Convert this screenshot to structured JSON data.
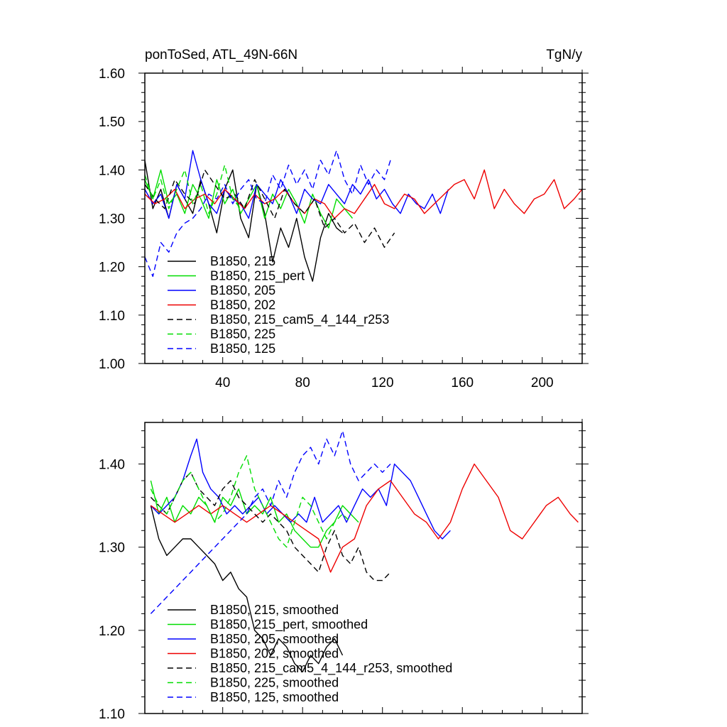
{
  "chart_data": [
    {
      "type": "line",
      "title": "ponToSed, ATL_49N-66N",
      "units": "TgN/y",
      "xlim": [
        1,
        220
      ],
      "ylim": [
        1.0,
        1.6
      ],
      "x_ticks": [
        40,
        80,
        120,
        160,
        200
      ],
      "x_tick_labels": [
        "40",
        "80",
        "120",
        "160",
        "200"
      ],
      "y_ticks": [
        1.0,
        1.1,
        1.2,
        1.3,
        1.4,
        1.5,
        1.6
      ],
      "y_tick_labels": [
        "1.00",
        "1.10",
        "1.20",
        "1.30",
        "1.40",
        "1.50",
        "1.60"
      ],
      "legend_position": "bottom-left",
      "series": [
        {
          "name": "B1850, 215",
          "color": "#000000",
          "dash": "solid",
          "x": [
            1,
            5,
            9,
            13,
            17,
            21,
            25,
            29,
            33,
            37,
            41,
            45,
            49,
            53,
            57,
            61,
            65,
            69,
            73,
            77,
            81,
            85,
            89,
            93,
            97,
            100
          ],
          "values": [
            1.42,
            1.32,
            1.36,
            1.3,
            1.37,
            1.34,
            1.31,
            1.38,
            1.33,
            1.27,
            1.36,
            1.4,
            1.3,
            1.26,
            1.37,
            1.31,
            1.21,
            1.28,
            1.24,
            1.3,
            1.22,
            1.17,
            1.26,
            1.31,
            1.28,
            1.27
          ]
        },
        {
          "name": "B1850, 215_pert",
          "color": "#00dd00",
          "dash": "solid",
          "x": [
            1,
            5,
            9,
            13,
            17,
            21,
            25,
            29,
            33,
            37,
            41,
            45,
            49,
            53,
            57,
            61,
            65,
            69,
            73,
            77,
            81,
            85,
            89,
            93,
            97,
            101,
            105
          ],
          "values": [
            1.38,
            1.34,
            1.4,
            1.33,
            1.35,
            1.31,
            1.37,
            1.34,
            1.3,
            1.38,
            1.33,
            1.36,
            1.31,
            1.34,
            1.37,
            1.3,
            1.35,
            1.32,
            1.36,
            1.33,
            1.29,
            1.35,
            1.31,
            1.28,
            1.34,
            1.32,
            1.3
          ]
        },
        {
          "name": "B1850, 205",
          "color": "#0000ff",
          "dash": "solid",
          "x": [
            1,
            5,
            9,
            13,
            17,
            21,
            25,
            29,
            33,
            37,
            41,
            45,
            49,
            53,
            57,
            61,
            65,
            69,
            73,
            77,
            81,
            85,
            89,
            93,
            97,
            101,
            105,
            109,
            113,
            117,
            121,
            125,
            129,
            133,
            137,
            141,
            145,
            149,
            153
          ],
          "values": [
            1.36,
            1.33,
            1.35,
            1.3,
            1.37,
            1.34,
            1.44,
            1.38,
            1.33,
            1.31,
            1.36,
            1.34,
            1.33,
            1.3,
            1.37,
            1.35,
            1.33,
            1.38,
            1.35,
            1.31,
            1.36,
            1.34,
            1.33,
            1.37,
            1.35,
            1.33,
            1.37,
            1.35,
            1.38,
            1.34,
            1.36,
            1.33,
            1.31,
            1.35,
            1.33,
            1.32,
            1.35,
            1.31,
            1.36
          ]
        },
        {
          "name": "B1850, 202",
          "color": "#ee0000",
          "dash": "solid",
          "x": [
            1,
            6,
            11,
            16,
            21,
            26,
            31,
            36,
            41,
            46,
            51,
            56,
            61,
            66,
            71,
            76,
            81,
            86,
            91,
            96,
            101,
            106,
            111,
            116,
            121,
            126,
            131,
            136,
            141,
            146,
            151,
            156,
            161,
            166,
            171,
            176,
            181,
            186,
            191,
            196,
            201,
            206,
            211,
            216,
            220
          ],
          "values": [
            1.35,
            1.33,
            1.34,
            1.36,
            1.32,
            1.34,
            1.35,
            1.33,
            1.36,
            1.34,
            1.32,
            1.35,
            1.33,
            1.34,
            1.36,
            1.33,
            1.31,
            1.34,
            1.33,
            1.3,
            1.32,
            1.31,
            1.34,
            1.37,
            1.33,
            1.32,
            1.35,
            1.34,
            1.31,
            1.33,
            1.35,
            1.37,
            1.38,
            1.34,
            1.4,
            1.32,
            1.36,
            1.33,
            1.31,
            1.34,
            1.35,
            1.38,
            1.32,
            1.34,
            1.36
          ]
        },
        {
          "name": "B1850, 215_cam5_4_144_r253",
          "color": "#000000",
          "dash": "dashed",
          "x": [
            1,
            6,
            11,
            16,
            21,
            26,
            31,
            36,
            41,
            46,
            51,
            56,
            61,
            66,
            71,
            76,
            81,
            86,
            91,
            96,
            101,
            106,
            111,
            116,
            121,
            126
          ],
          "values": [
            1.37,
            1.34,
            1.32,
            1.38,
            1.35,
            1.33,
            1.4,
            1.37,
            1.34,
            1.35,
            1.32,
            1.38,
            1.34,
            1.3,
            1.36,
            1.33,
            1.31,
            1.34,
            1.28,
            1.3,
            1.27,
            1.29,
            1.25,
            1.28,
            1.24,
            1.27
          ]
        },
        {
          "name": "B1850, 225",
          "color": "#00dd00",
          "dash": "dashed",
          "x": [
            1,
            5,
            9,
            13,
            17,
            21,
            25,
            29,
            33,
            37,
            41,
            45,
            49
          ],
          "values": [
            1.39,
            1.34,
            1.38,
            1.32,
            1.36,
            1.4,
            1.33,
            1.37,
            1.31,
            1.35,
            1.41,
            1.34,
            1.32
          ]
        },
        {
          "name": "B1850, 125",
          "color": "#0000ff",
          "dash": "dashed",
          "x": [
            1,
            5,
            9,
            13,
            17,
            21,
            25,
            29,
            33,
            37,
            41,
            45,
            49,
            53,
            57,
            61,
            65,
            69,
            73,
            77,
            81,
            85,
            89,
            93,
            97,
            101,
            105,
            109,
            113,
            117,
            121,
            124
          ],
          "values": [
            1.22,
            1.18,
            1.25,
            1.23,
            1.27,
            1.29,
            1.3,
            1.32,
            1.35,
            1.34,
            1.37,
            1.33,
            1.36,
            1.38,
            1.34,
            1.33,
            1.39,
            1.36,
            1.41,
            1.37,
            1.4,
            1.36,
            1.42,
            1.39,
            1.44,
            1.38,
            1.35,
            1.41,
            1.37,
            1.4,
            1.38,
            1.42
          ]
        }
      ]
    },
    {
      "type": "line",
      "xlim": [
        1,
        220
      ],
      "ylim": [
        1.1,
        1.45
      ],
      "y_ticks": [
        1.1,
        1.2,
        1.3,
        1.4
      ],
      "y_tick_labels": [
        "1.10",
        "1.20",
        "1.30",
        "1.40"
      ],
      "legend_position": "bottom-left",
      "series": [
        {
          "name": "B1850, 215, smoothed",
          "color": "#000000",
          "dash": "solid",
          "x": [
            4,
            8,
            12,
            16,
            20,
            24,
            28,
            32,
            36,
            40,
            44,
            48,
            52,
            56,
            60,
            64,
            68,
            72,
            76,
            80,
            84,
            88,
            92,
            96,
            100
          ],
          "values": [
            1.35,
            1.31,
            1.29,
            1.3,
            1.31,
            1.31,
            1.3,
            1.29,
            1.28,
            1.26,
            1.27,
            1.25,
            1.24,
            1.2,
            1.19,
            1.17,
            1.19,
            1.18,
            1.16,
            1.15,
            1.17,
            1.16,
            1.18,
            1.19,
            1.17
          ]
        },
        {
          "name": "B1850, 215_pert, smoothed",
          "color": "#00dd00",
          "dash": "solid",
          "x": [
            4,
            8,
            12,
            16,
            20,
            24,
            28,
            32,
            36,
            40,
            44,
            48,
            52,
            56,
            60,
            64,
            68,
            72,
            76,
            80,
            84,
            88,
            92,
            96,
            100,
            104,
            108
          ],
          "values": [
            1.38,
            1.34,
            1.36,
            1.33,
            1.35,
            1.34,
            1.36,
            1.35,
            1.33,
            1.36,
            1.35,
            1.37,
            1.34,
            1.35,
            1.34,
            1.36,
            1.33,
            1.34,
            1.32,
            1.31,
            1.3,
            1.3,
            1.32,
            1.33,
            1.35,
            1.34,
            1.33
          ]
        },
        {
          "name": "B1850, 205, smoothed",
          "color": "#0000ff",
          "dash": "solid",
          "x": [
            4,
            8,
            12,
            16,
            20,
            24,
            27,
            30,
            34,
            38,
            42,
            46,
            50,
            54,
            58,
            62,
            66,
            70,
            74,
            78,
            82,
            86,
            90,
            94,
            98,
            102,
            106,
            110,
            114,
            118,
            122,
            126,
            130,
            134,
            138,
            142,
            146,
            150,
            154
          ],
          "values": [
            1.35,
            1.34,
            1.35,
            1.36,
            1.38,
            1.41,
            1.43,
            1.39,
            1.37,
            1.36,
            1.34,
            1.35,
            1.34,
            1.35,
            1.36,
            1.34,
            1.35,
            1.34,
            1.33,
            1.34,
            1.33,
            1.36,
            1.33,
            1.34,
            1.35,
            1.33,
            1.35,
            1.37,
            1.36,
            1.37,
            1.35,
            1.4,
            1.39,
            1.38,
            1.36,
            1.34,
            1.32,
            1.31,
            1.32
          ]
        },
        {
          "name": "B1850, 202, smoothed",
          "color": "#ee0000",
          "dash": "solid",
          "x": [
            4,
            10,
            16,
            22,
            28,
            34,
            40,
            46,
            52,
            58,
            64,
            70,
            76,
            82,
            88,
            94,
            100,
            106,
            112,
            118,
            124,
            130,
            136,
            142,
            148,
            154,
            160,
            166,
            172,
            178,
            184,
            190,
            196,
            202,
            208,
            214,
            218
          ],
          "values": [
            1.35,
            1.34,
            1.33,
            1.34,
            1.35,
            1.34,
            1.35,
            1.34,
            1.33,
            1.34,
            1.35,
            1.34,
            1.33,
            1.32,
            1.31,
            1.27,
            1.3,
            1.31,
            1.35,
            1.37,
            1.38,
            1.36,
            1.34,
            1.33,
            1.31,
            1.33,
            1.37,
            1.4,
            1.38,
            1.36,
            1.32,
            1.31,
            1.33,
            1.35,
            1.36,
            1.34,
            1.33
          ]
        },
        {
          "name": "B1850, 215_cam5_4_144_r253, smoothed",
          "color": "#000000",
          "dash": "dashed",
          "x": [
            4,
            8,
            12,
            16,
            20,
            24,
            28,
            32,
            36,
            40,
            44,
            48,
            52,
            56,
            60,
            64,
            68,
            72,
            76,
            80,
            84,
            88,
            92,
            96,
            100,
            104,
            108,
            112,
            116,
            120,
            124
          ],
          "values": [
            1.36,
            1.35,
            1.34,
            1.36,
            1.38,
            1.39,
            1.37,
            1.36,
            1.35,
            1.37,
            1.38,
            1.36,
            1.35,
            1.34,
            1.33,
            1.34,
            1.33,
            1.32,
            1.3,
            1.29,
            1.28,
            1.27,
            1.3,
            1.32,
            1.29,
            1.28,
            1.3,
            1.27,
            1.26,
            1.26,
            1.27
          ]
        },
        {
          "name": "B1850, 225, smoothed",
          "color": "#00dd00",
          "dash": "dashed",
          "x": [
            4,
            8,
            12,
            16,
            20,
            24,
            28,
            32,
            36,
            40,
            44,
            48,
            52,
            56,
            60,
            64,
            68,
            72,
            76,
            80,
            84,
            88,
            92,
            96,
            100,
            104
          ],
          "values": [
            1.37,
            1.35,
            1.34,
            1.36,
            1.38,
            1.39,
            1.37,
            1.35,
            1.33,
            1.34,
            1.36,
            1.39,
            1.41,
            1.37,
            1.35,
            1.33,
            1.31,
            1.3,
            1.33,
            1.36,
            1.35,
            1.33,
            1.31,
            1.33,
            1.34,
            1.33
          ]
        },
        {
          "name": "B1850, 125, smoothed",
          "color": "#0000ff",
          "dash": "dashed",
          "x": [
            4,
            8,
            12,
            16,
            20,
            24,
            28,
            32,
            36,
            40,
            44,
            48,
            52,
            56,
            60,
            64,
            68,
            72,
            76,
            80,
            84,
            88,
            92,
            96,
            100,
            104,
            108,
            112,
            116,
            120,
            124
          ],
          "values": [
            1.22,
            1.23,
            1.24,
            1.25,
            1.26,
            1.27,
            1.28,
            1.29,
            1.3,
            1.31,
            1.32,
            1.33,
            1.34,
            1.36,
            1.37,
            1.35,
            1.38,
            1.36,
            1.39,
            1.41,
            1.42,
            1.4,
            1.43,
            1.41,
            1.44,
            1.4,
            1.38,
            1.39,
            1.4,
            1.39,
            1.4
          ]
        }
      ]
    }
  ]
}
